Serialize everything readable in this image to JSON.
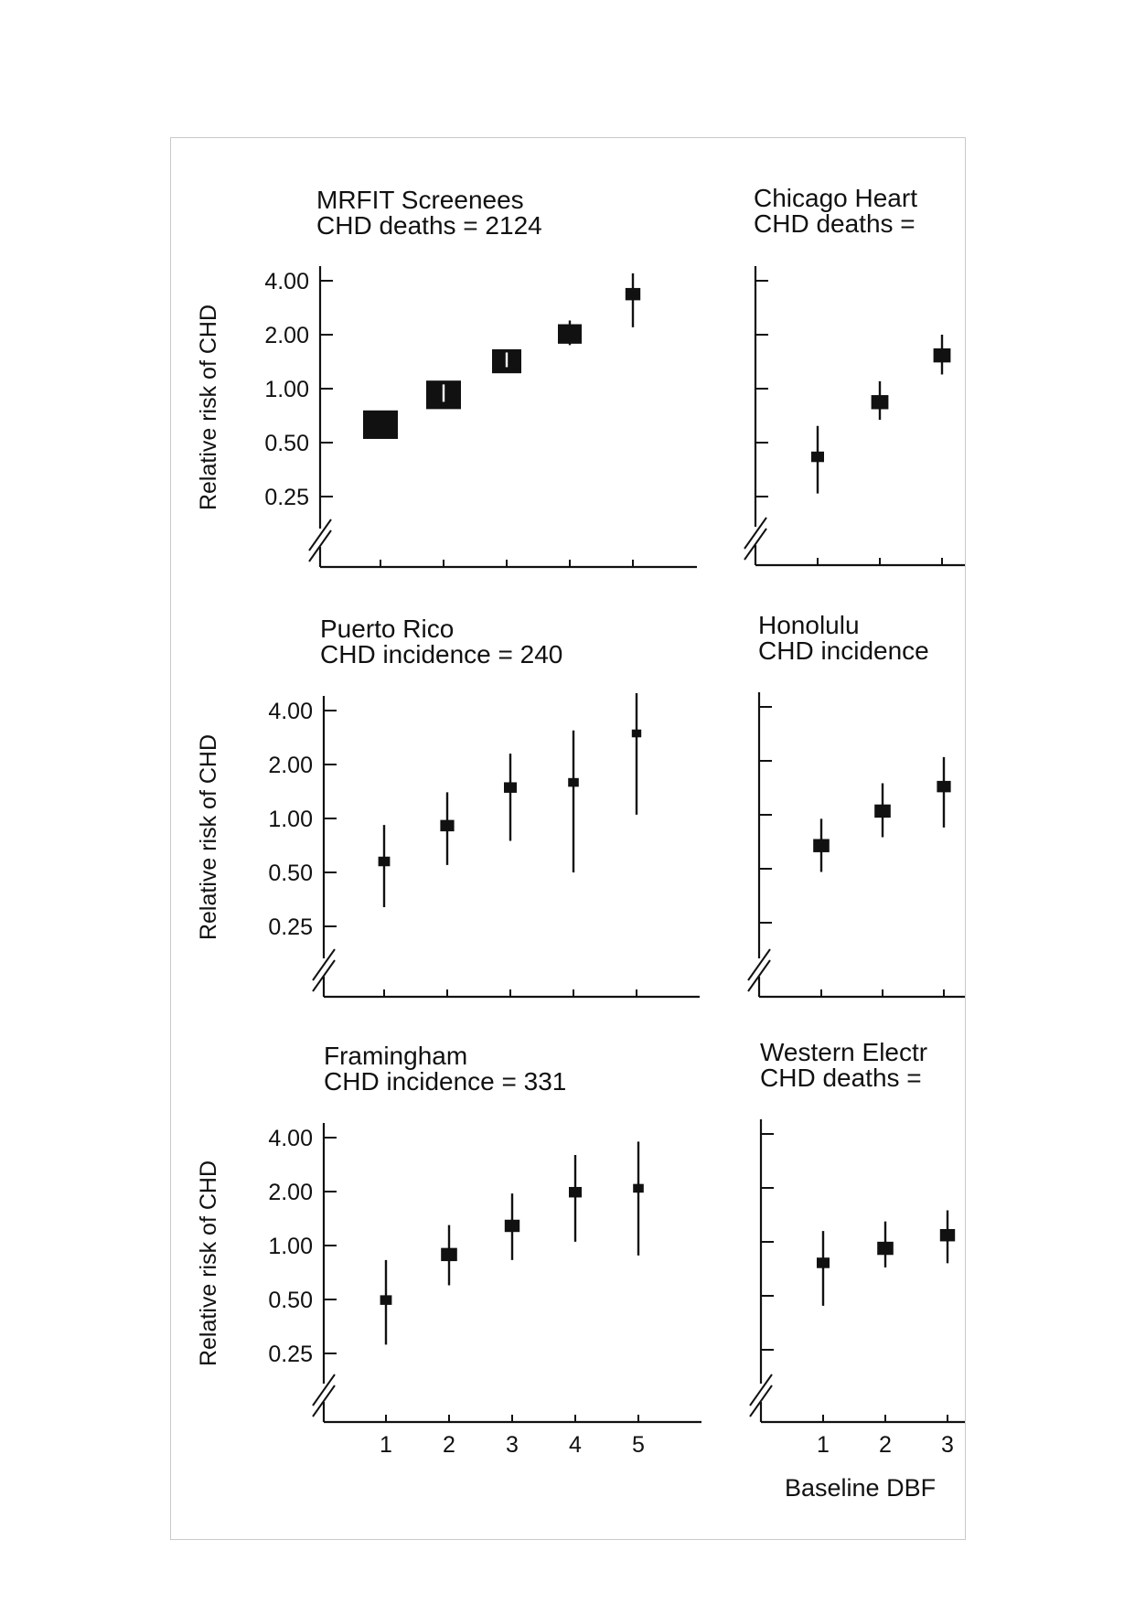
{
  "chart_data": [
    {
      "type": "scatter",
      "title": "MRFIT Screenees",
      "subtitle": "CHD deaths = 2124",
      "ylabel": "Relative risk of CHD",
      "xlabel": "",
      "y_scale": "log",
      "yticks": [
        "4.00",
        "2.00",
        "1.00",
        "0.50",
        "0.25"
      ],
      "ytick_values": [
        4.0,
        2.0,
        1.0,
        0.5,
        0.25
      ],
      "xticks": [],
      "points": [
        {
          "x": 1,
          "y": 0.6,
          "lo": 0.6,
          "hi": 0.6,
          "weight": 3
        },
        {
          "x": 2,
          "y": 0.88,
          "lo": 0.82,
          "hi": 0.95,
          "weight": 3
        },
        {
          "x": 3,
          "y": 1.35,
          "lo": 1.25,
          "hi": 1.45,
          "weight": 2.5
        },
        {
          "x": 4,
          "y": 2.05,
          "lo": 1.75,
          "hi": 2.4,
          "weight": 2
        },
        {
          "x": 5,
          "y": 3.4,
          "lo": 2.2,
          "hi": 4.4,
          "weight": 1.2
        }
      ]
    },
    {
      "type": "scatter",
      "title": "Chicago Heart",
      "subtitle": "CHD deaths =",
      "ylabel": "",
      "xlabel": "",
      "y_scale": "log",
      "yticks": [],
      "ytick_values": [
        4.0,
        2.0,
        1.0,
        0.5,
        0.25
      ],
      "xticks": [],
      "points": [
        {
          "x": 1,
          "y": 0.42,
          "lo": 0.26,
          "hi": 0.62,
          "weight": 1
        },
        {
          "x": 2,
          "y": 0.85,
          "lo": 0.67,
          "hi": 1.1,
          "weight": 1.4
        },
        {
          "x": 3,
          "y": 1.55,
          "lo": 1.2,
          "hi": 2.0,
          "weight": 1.4
        }
      ]
    },
    {
      "type": "scatter",
      "title": "Puerto Rico",
      "subtitle": "CHD incidence = 240",
      "ylabel": "Relative risk of CHD",
      "xlabel": "",
      "y_scale": "log",
      "yticks": [
        "4.00",
        "2.00",
        "1.00",
        "0.50",
        "0.25"
      ],
      "ytick_values": [
        4.0,
        2.0,
        1.0,
        0.5,
        0.25
      ],
      "xticks": [],
      "points": [
        {
          "x": 1,
          "y": 0.58,
          "lo": 0.32,
          "hi": 0.92,
          "weight": 0.9
        },
        {
          "x": 2,
          "y": 0.92,
          "lo": 0.55,
          "hi": 1.4,
          "weight": 1.1
        },
        {
          "x": 3,
          "y": 1.5,
          "lo": 0.75,
          "hi": 2.3,
          "weight": 1
        },
        {
          "x": 4,
          "y": 1.6,
          "lo": 0.5,
          "hi": 3.1,
          "weight": 0.8
        },
        {
          "x": 5,
          "y": 3.0,
          "lo": 1.05,
          "hi": 5.0,
          "weight": 0.7
        }
      ]
    },
    {
      "type": "scatter",
      "title": "Honolulu",
      "subtitle": "CHD incidence",
      "ylabel": "",
      "xlabel": "",
      "y_scale": "log",
      "yticks": [],
      "ytick_values": [
        4.0,
        2.0,
        1.0,
        0.5,
        0.25
      ],
      "xticks": [],
      "points": [
        {
          "x": 1,
          "y": 0.68,
          "lo": 0.48,
          "hi": 0.95,
          "weight": 1.3
        },
        {
          "x": 2,
          "y": 1.06,
          "lo": 0.75,
          "hi": 1.5,
          "weight": 1.3
        },
        {
          "x": 3,
          "y": 1.45,
          "lo": 0.85,
          "hi": 2.1,
          "weight": 1.1
        }
      ]
    },
    {
      "type": "scatter",
      "title": "Framingham",
      "subtitle": "CHD incidence = 331",
      "ylabel": "Relative risk of CHD",
      "xlabel": "",
      "y_scale": "log",
      "yticks": [
        "4.00",
        "2.00",
        "1.00",
        "0.50",
        "0.25"
      ],
      "ytick_values": [
        4.0,
        2.0,
        1.0,
        0.5,
        0.25
      ],
      "xticks": [
        "1",
        "2",
        "3",
        "4",
        "5"
      ],
      "points": [
        {
          "x": 1,
          "y": 0.5,
          "lo": 0.28,
          "hi": 0.83,
          "weight": 0.9
        },
        {
          "x": 2,
          "y": 0.9,
          "lo": 0.6,
          "hi": 1.3,
          "weight": 1.3
        },
        {
          "x": 3,
          "y": 1.3,
          "lo": 0.83,
          "hi": 1.95,
          "weight": 1.2
        },
        {
          "x": 4,
          "y": 2.0,
          "lo": 1.05,
          "hi": 3.2,
          "weight": 1
        },
        {
          "x": 5,
          "y": 2.1,
          "lo": 0.88,
          "hi": 3.8,
          "weight": 0.8
        }
      ]
    },
    {
      "type": "scatter",
      "title": "Western Electr",
      "subtitle": "CHD deaths =",
      "ylabel": "",
      "xlabel": "Baseline DBF",
      "y_scale": "log",
      "yticks": [],
      "ytick_values": [
        4.0,
        2.0,
        1.0,
        0.5,
        0.25
      ],
      "xticks": [
        "1",
        "2",
        "3"
      ],
      "points": [
        {
          "x": 1,
          "y": 0.77,
          "lo": 0.44,
          "hi": 1.15,
          "weight": 1
        },
        {
          "x": 2,
          "y": 0.93,
          "lo": 0.72,
          "hi": 1.3,
          "weight": 1.3
        },
        {
          "x": 3,
          "y": 1.1,
          "lo": 0.76,
          "hi": 1.5,
          "weight": 1.2
        }
      ]
    }
  ]
}
